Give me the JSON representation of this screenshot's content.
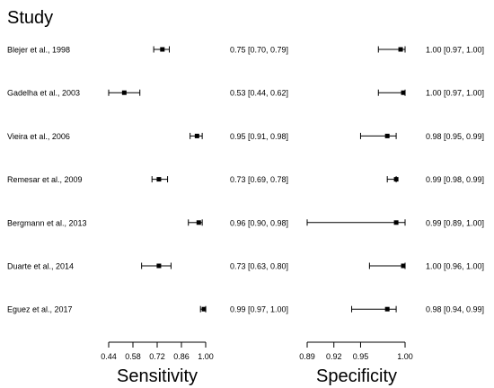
{
  "chart_data": {
    "type": "forest",
    "header": "Study",
    "studies": [
      {
        "label": "Blejer et al., 1998",
        "sens": {
          "est": 0.75,
          "lo": 0.7,
          "hi": 0.79,
          "text": "0.75 [0.70, 0.79]"
        },
        "spec": {
          "est": 0.995,
          "lo": 0.97,
          "hi": 1.0,
          "text": "1.00 [0.97, 1.00]"
        }
      },
      {
        "label": "Gadelha et al., 2003",
        "sens": {
          "est": 0.53,
          "lo": 0.44,
          "hi": 0.62,
          "text": "0.53 [0.44, 0.62]"
        },
        "spec": {
          "est": 0.998,
          "lo": 0.97,
          "hi": 1.0,
          "text": "1.00 [0.97, 1.00]"
        }
      },
      {
        "label": "Vieira et al., 2006",
        "sens": {
          "est": 0.95,
          "lo": 0.91,
          "hi": 0.98,
          "text": "0.95 [0.91, 0.98]"
        },
        "spec": {
          "est": 0.98,
          "lo": 0.95,
          "hi": 0.99,
          "text": "0.98 [0.95, 0.99]"
        }
      },
      {
        "label": "Remesar et al., 2009",
        "sens": {
          "est": 0.73,
          "lo": 0.69,
          "hi": 0.78,
          "text": "0.73 [0.69, 0.78]"
        },
        "spec": {
          "est": 0.99,
          "lo": 0.98,
          "hi": 0.99,
          "text": "0.99 [0.98, 0.99]"
        }
      },
      {
        "label": "Bergmann et al., 2013",
        "sens": {
          "est": 0.96,
          "lo": 0.9,
          "hi": 0.98,
          "text": "0.96 [0.90, 0.98]"
        },
        "spec": {
          "est": 0.99,
          "lo": 0.89,
          "hi": 1.0,
          "text": "0.99 [0.89, 1.00]"
        }
      },
      {
        "label": "Duarte et al., 2014",
        "sens": {
          "est": 0.73,
          "lo": 0.63,
          "hi": 0.8,
          "text": "0.73 [0.63, 0.80]"
        },
        "spec": {
          "est": 0.998,
          "lo": 0.96,
          "hi": 1.0,
          "text": "1.00 [0.96, 1.00]"
        }
      },
      {
        "label": "Eguez et al., 2017",
        "sens": {
          "est": 0.99,
          "lo": 0.97,
          "hi": 1.0,
          "text": "0.99 [0.97, 1.00]"
        },
        "spec": {
          "est": 0.98,
          "lo": 0.94,
          "hi": 0.99,
          "text": "0.98 [0.94, 0.99]"
        }
      }
    ],
    "sensitivity_axis": {
      "label": "Sensitivity",
      "range": [
        0.44,
        1.0
      ],
      "ticks": [
        "0.44",
        "0.58",
        "0.72",
        "0.86",
        "1.00"
      ]
    },
    "specificity_axis": {
      "label": "Specificity",
      "range": [
        0.89,
        1.0
      ],
      "ticks": [
        "0.89",
        "0.92",
        "0.95",
        "1.00"
      ]
    },
    "tick_values_spec": [
      0.89,
      0.92,
      0.95,
      1.0
    ],
    "tick_values_sens": [
      0.44,
      0.58,
      0.72,
      0.86,
      1.0
    ]
  }
}
